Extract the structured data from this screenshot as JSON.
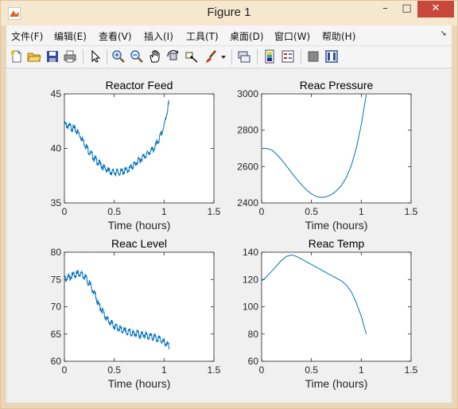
{
  "window": {
    "title": "Figure 1",
    "min": "–",
    "max": "□",
    "close": "✕"
  },
  "menu": [
    "文件(F)",
    "编辑(E)",
    "查看(V)",
    "插入(I)",
    "工具(T)",
    "桌面(D)",
    "窗口(W)",
    "帮助(H)"
  ],
  "toolbar_icons": [
    "new-figure-icon",
    "open-file-icon",
    "save-icon",
    "print-icon",
    "pointer-icon",
    "zoom-in-icon",
    "zoom-out-icon",
    "pan-hand-icon",
    "rotate-3d-icon",
    "data-cursor-icon",
    "brush-icon",
    "brush-dropdown-icon",
    "link-plot-icon",
    "colorbar-icon",
    "legend-icon",
    "hide-plot-tools-icon",
    "show-plot-tools-icon"
  ],
  "chart_data": [
    {
      "type": "line",
      "title": "Reactor Feed",
      "xlabel": "Time (hours)",
      "ylabel": "",
      "xlim": [
        0,
        1.5
      ],
      "ylim": [
        35,
        45
      ],
      "xticks": [
        "0",
        "0.5",
        "1",
        "1.5"
      ],
      "yticks": [
        "35",
        "40",
        "45"
      ],
      "noisy": true,
      "x": [
        0,
        0.05,
        0.1,
        0.15,
        0.2,
        0.25,
        0.3,
        0.35,
        0.4,
        0.45,
        0.5,
        0.55,
        0.6,
        0.65,
        0.7,
        0.75,
        0.8,
        0.85,
        0.9,
        0.95,
        1.0,
        1.05
      ],
      "y": [
        42.2,
        42.0,
        41.8,
        41.3,
        40.5,
        39.7,
        39.1,
        38.6,
        38.2,
        37.9,
        37.8,
        37.8,
        37.9,
        38.1,
        38.5,
        38.9,
        39.3,
        39.6,
        40.0,
        40.8,
        42.0,
        44.3
      ]
    },
    {
      "type": "line",
      "title": "Reac Pressure",
      "xlabel": "Time (hours)",
      "ylabel": "",
      "xlim": [
        0,
        1.5
      ],
      "ylim": [
        2400,
        3000
      ],
      "xticks": [
        "0",
        "0.5",
        "1",
        "1.5"
      ],
      "yticks": [
        "2400",
        "2600",
        "2800",
        "3000"
      ],
      "noisy": false,
      "x": [
        0,
        0.05,
        0.1,
        0.15,
        0.2,
        0.25,
        0.3,
        0.35,
        0.4,
        0.45,
        0.5,
        0.55,
        0.6,
        0.65,
        0.7,
        0.75,
        0.8,
        0.85,
        0.9,
        0.95,
        1.0,
        1.05
      ],
      "y": [
        2700,
        2700,
        2692,
        2668,
        2638,
        2603,
        2567,
        2532,
        2500,
        2472,
        2450,
        2435,
        2430,
        2434,
        2446,
        2466,
        2495,
        2540,
        2605,
        2700,
        2830,
        2995
      ]
    },
    {
      "type": "line",
      "title": "Reac Level",
      "xlabel": "Time (hours)",
      "ylabel": "",
      "xlim": [
        0,
        1.5
      ],
      "ylim": [
        60,
        80
      ],
      "xticks": [
        "0",
        "0.5",
        "1",
        "1.5"
      ],
      "yticks": [
        "60",
        "65",
        "70",
        "75",
        "80"
      ],
      "noisy": true,
      "x": [
        0,
        0.05,
        0.1,
        0.15,
        0.2,
        0.25,
        0.3,
        0.35,
        0.4,
        0.45,
        0.5,
        0.55,
        0.6,
        0.65,
        0.7,
        0.75,
        0.8,
        0.85,
        0.9,
        0.95,
        1.0,
        1.05
      ],
      "y": [
        75.2,
        75.5,
        75.8,
        76.1,
        75.6,
        74.3,
        72.5,
        70.2,
        68.5,
        67.3,
        66.5,
        66.0,
        65.6,
        65.3,
        65.1,
        64.9,
        64.8,
        64.6,
        64.4,
        64.1,
        63.6,
        62.8
      ]
    },
    {
      "type": "line",
      "title": "Reac Temp",
      "xlabel": "Time (hours)",
      "ylabel": "",
      "xlim": [
        0,
        1.5
      ],
      "ylim": [
        60,
        140
      ],
      "xticks": [
        "0",
        "0.5",
        "1",
        "1.5"
      ],
      "yticks": [
        "60",
        "80",
        "100",
        "120",
        "140"
      ],
      "noisy": false,
      "x": [
        0,
        0.05,
        0.1,
        0.15,
        0.2,
        0.25,
        0.3,
        0.35,
        0.4,
        0.45,
        0.5,
        0.55,
        0.6,
        0.65,
        0.7,
        0.75,
        0.8,
        0.85,
        0.9,
        0.95,
        1.0,
        1.05
      ],
      "y": [
        119,
        122,
        126,
        130,
        134,
        137,
        138,
        137,
        135,
        133,
        131,
        129,
        127,
        125,
        123,
        121,
        119,
        116,
        111,
        103,
        93,
        80
      ]
    }
  ],
  "colors": {
    "line": "#0072bd",
    "axes": "#262626",
    "title_bar": "#f6e7cf",
    "close": "#c7473a"
  }
}
